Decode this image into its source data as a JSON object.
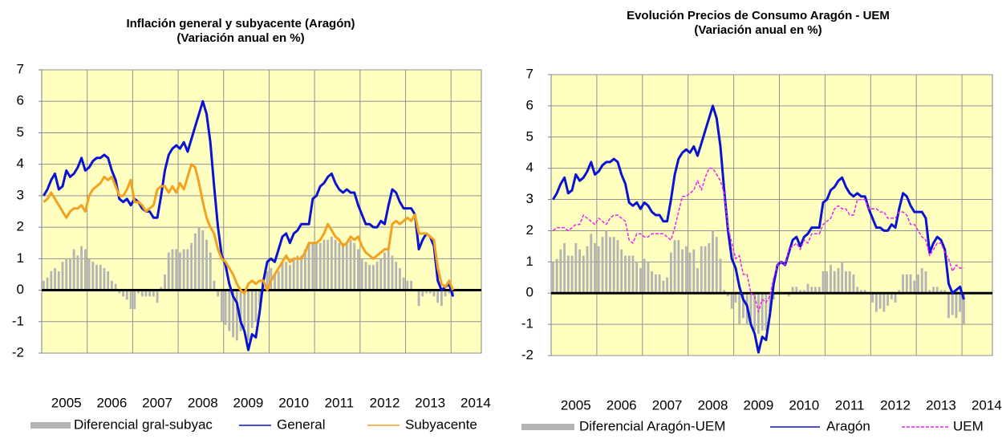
{
  "chart_data": [
    {
      "type": "line",
      "title": "Inflación general y subyacente (Aragón)",
      "subtitle": "(Variación anual en %)",
      "categories": [
        null,
        null,
        null,
        null,
        null,
        null,
        "2005",
        null,
        null,
        null,
        null,
        null,
        null,
        null,
        null,
        null,
        null,
        null,
        "2006",
        null,
        null,
        null,
        null,
        null,
        null,
        null,
        null,
        null,
        null,
        null,
        "2007",
        null,
        null,
        null,
        null,
        null,
        null,
        null,
        null,
        null,
        null,
        null,
        "2008",
        null,
        null,
        null,
        null,
        null,
        null,
        null,
        null,
        null,
        null,
        null,
        "2009",
        null,
        null,
        null,
        null,
        null,
        null,
        null,
        null,
        null,
        null,
        null,
        "2010",
        null,
        null,
        null,
        null,
        null,
        null,
        null,
        null,
        null,
        null,
        null,
        "2011",
        null,
        null,
        null,
        null,
        null,
        null,
        null,
        null,
        null,
        null,
        null,
        "2012",
        null,
        null,
        null,
        null,
        null,
        null,
        null,
        null,
        null,
        null,
        null,
        "2013",
        null,
        null,
        null,
        null,
        null,
        null,
        null,
        null,
        null,
        null,
        null,
        "2014",
        null
      ],
      "ylim": [
        -2,
        7
      ],
      "yticks": [
        -2,
        -1,
        0,
        1,
        2,
        3,
        4,
        5,
        6,
        7
      ],
      "grid": true,
      "series": [
        {
          "name": "Diferencial gral-subyac",
          "type": "bar",
          "color": "#b4b4b4",
          "values": [
            0.3,
            0.4,
            0.6,
            0.7,
            0.6,
            0.9,
            1.0,
            1.0,
            1.3,
            1.1,
            1.4,
            1.3,
            1.0,
            0.9,
            0.8,
            0.8,
            0.7,
            0.6,
            0.3,
            0.2,
            -0.1,
            -0.2,
            -0.3,
            -0.6,
            -0.6,
            -0.1,
            -0.2,
            -0.2,
            -0.2,
            -0.2,
            -0.4,
            0.1,
            0.5,
            1.2,
            1.3,
            1.3,
            1.2,
            1.3,
            1.3,
            1.5,
            1.8,
            2.0,
            1.9,
            1.6,
            1.2,
            0.3,
            -0.2,
            -1.0,
            -1.1,
            -1.3,
            -1.5,
            -1.6,
            -1.3,
            -1.2,
            -1.6,
            -1.2,
            -1.0,
            -0.5,
            0.1,
            0.6,
            0.7,
            0.5,
            0.6,
            0.9,
            0.9,
            0.8,
            1.0,
            1.1,
            1.1,
            1.3,
            1.5,
            1.5,
            1.5,
            1.5,
            1.6,
            1.6,
            1.7,
            1.6,
            1.5,
            1.5,
            1.5,
            1.6,
            1.5,
            1.3,
            1.0,
            0.9,
            0.8,
            0.8,
            0.9,
            1.0,
            1.2,
            1.4,
            1.1,
            0.9,
            0.7,
            0.4,
            0.3,
            0.3,
            0.0,
            -0.5,
            -0.2,
            -0.1,
            -0.1,
            -0.2,
            -0.4,
            -0.5,
            -0.2,
            -0.1,
            -0.2,
            null,
            null,
            null,
            null,
            null,
            null,
            null
          ]
        },
        {
          "name": "General",
          "type": "line",
          "color": "#0a14d0",
          "values": [
            3.0,
            3.2,
            3.5,
            3.7,
            3.2,
            3.3,
            3.8,
            3.6,
            3.7,
            3.9,
            4.2,
            3.8,
            3.9,
            4.1,
            4.2,
            4.2,
            4.3,
            4.2,
            3.8,
            3.5,
            2.9,
            2.8,
            2.9,
            2.7,
            2.9,
            2.8,
            2.6,
            2.5,
            2.5,
            2.3,
            2.3,
            3.0,
            3.8,
            4.3,
            4.5,
            4.6,
            4.5,
            4.7,
            4.4,
            4.8,
            5.2,
            5.6,
            6.0,
            5.6,
            4.7,
            3.3,
            2.0,
            1.1,
            0.8,
            0.2,
            -0.2,
            -0.4,
            -1.0,
            -1.3,
            -1.9,
            -1.4,
            -1.5,
            -0.7,
            0.3,
            0.9,
            1.0,
            0.9,
            1.3,
            1.7,
            1.8,
            1.5,
            1.8,
            1.9,
            2.1,
            2.1,
            2.1,
            2.9,
            3.0,
            3.3,
            3.4,
            3.6,
            3.7,
            3.4,
            3.2,
            3.1,
            3.2,
            3.1,
            3.1,
            2.7,
            2.4,
            2.1,
            2.1,
            2.0,
            2.0,
            2.2,
            2.1,
            2.7,
            3.2,
            3.1,
            2.8,
            2.6,
            2.6,
            2.6,
            2.4,
            1.3,
            1.6,
            1.8,
            1.7,
            1.4,
            0.3,
            0.0,
            0.1,
            0.2,
            -0.2,
            null,
            null,
            null,
            null,
            null,
            null,
            null
          ]
        },
        {
          "name": "Subyacente",
          "type": "line",
          "color": "#f4a020",
          "values": [
            2.8,
            2.9,
            3.1,
            2.9,
            2.7,
            2.5,
            2.3,
            2.5,
            2.6,
            2.6,
            2.7,
            2.5,
            3.0,
            3.2,
            3.3,
            3.4,
            3.6,
            3.5,
            3.6,
            3.3,
            3.0,
            3.0,
            3.2,
            3.5,
            2.8,
            2.8,
            2.7,
            2.5,
            2.6,
            2.7,
            3.2,
            3.3,
            3.3,
            3.1,
            3.3,
            3.1,
            3.4,
            3.2,
            3.6,
            4.0,
            3.9,
            3.4,
            2.8,
            2.3,
            2.0,
            1.8,
            1.3,
            1.0,
            0.9,
            0.7,
            0.5,
            0.2,
            0.0,
            -0.1,
            0.2,
            0.3,
            0.2,
            0.3,
            0.3,
            0.0,
            0.3,
            0.5,
            0.7,
            0.9,
            1.1,
            0.9,
            1.0,
            1.0,
            1.0,
            1.2,
            1.5,
            1.5,
            1.5,
            1.6,
            1.8,
            2.1,
            1.9,
            1.7,
            1.6,
            1.4,
            1.5,
            1.7,
            1.6,
            1.7,
            1.4,
            1.2,
            1.1,
            1.0,
            1.1,
            1.2,
            1.3,
            1.3,
            2.1,
            2.2,
            2.1,
            2.2,
            2.3,
            2.2,
            2.4,
            1.8,
            1.8,
            1.8,
            1.7,
            1.6,
            0.7,
            0.2,
            0.1,
            0.3,
            0.0,
            null,
            null,
            null,
            null,
            null,
            null,
            null
          ]
        }
      ]
    },
    {
      "type": "line",
      "title": "Evolución Precios de Consumo Aragón - UEM",
      "subtitle": "(Variación anual en %)",
      "categories": [
        null,
        null,
        null,
        null,
        null,
        null,
        "2005",
        null,
        null,
        null,
        null,
        null,
        null,
        null,
        null,
        null,
        null,
        null,
        "2006",
        null,
        null,
        null,
        null,
        null,
        null,
        null,
        null,
        null,
        null,
        null,
        "2007",
        null,
        null,
        null,
        null,
        null,
        null,
        null,
        null,
        null,
        null,
        null,
        "2008",
        null,
        null,
        null,
        null,
        null,
        null,
        null,
        null,
        null,
        null,
        null,
        "2009",
        null,
        null,
        null,
        null,
        null,
        null,
        null,
        null,
        null,
        null,
        null,
        "2010",
        null,
        null,
        null,
        null,
        null,
        null,
        null,
        null,
        null,
        null,
        null,
        "2011",
        null,
        null,
        null,
        null,
        null,
        null,
        null,
        null,
        null,
        null,
        null,
        "2012",
        null,
        null,
        null,
        null,
        null,
        null,
        null,
        null,
        null,
        null,
        null,
        "2013",
        null,
        null,
        null,
        null,
        null,
        null,
        null,
        null,
        null,
        null,
        null,
        "2014",
        null
      ],
      "ylim": [
        -2,
        7
      ],
      "yticks": [
        -2,
        -1,
        0,
        1,
        2,
        3,
        4,
        5,
        6,
        7
      ],
      "grid": true,
      "series": [
        {
          "name": "Diferencial Aragón-UEM",
          "type": "bar",
          "color": "#b4b4b4",
          "values": [
            1.0,
            1.1,
            1.4,
            1.6,
            1.2,
            1.2,
            1.6,
            1.4,
            1.2,
            1.5,
            1.9,
            1.6,
            1.5,
            1.8,
            2.0,
            1.8,
            1.8,
            1.7,
            1.4,
            1.2,
            1.2,
            1.2,
            1.0,
            0.8,
            1.1,
            1.0,
            0.7,
            0.6,
            0.6,
            0.4,
            0.5,
            1.3,
            1.7,
            1.7,
            1.4,
            1.5,
            1.3,
            1.4,
            0.8,
            1.5,
            1.5,
            1.6,
            2.0,
            1.8,
            1.1,
            0.1,
            -0.1,
            -0.5,
            -0.3,
            -1.0,
            -0.8,
            -1.0,
            -1.0,
            -1.2,
            -1.3,
            -1.2,
            -1.2,
            -0.6,
            -0.2,
            0.0,
            0.0,
            0.0,
            -0.1,
            0.2,
            0.2,
            0.1,
            0.1,
            0.3,
            0.2,
            0.2,
            0.2,
            0.7,
            0.7,
            0.9,
            0.7,
            0.8,
            1.0,
            0.7,
            0.7,
            0.6,
            0.2,
            0.1,
            0.1,
            0.0,
            -0.3,
            -0.6,
            -0.5,
            -0.6,
            -0.4,
            -0.2,
            -0.3,
            0.1,
            0.6,
            0.6,
            0.6,
            0.4,
            0.6,
            0.8,
            0.7,
            0.1,
            0.2,
            0.2,
            0.1,
            0.1,
            -0.8,
            -0.7,
            -0.8,
            -0.6,
            -1.0,
            null,
            null,
            null,
            null,
            null,
            null,
            null
          ]
        },
        {
          "name": "Aragón",
          "type": "line",
          "color": "#0a14d0",
          "values": [
            3.0,
            3.2,
            3.5,
            3.7,
            3.2,
            3.3,
            3.8,
            3.6,
            3.7,
            3.9,
            4.2,
            3.8,
            3.9,
            4.1,
            4.2,
            4.2,
            4.3,
            4.2,
            3.8,
            3.5,
            2.9,
            2.8,
            2.9,
            2.7,
            2.9,
            2.8,
            2.6,
            2.5,
            2.5,
            2.3,
            2.3,
            3.0,
            3.8,
            4.3,
            4.5,
            4.6,
            4.5,
            4.7,
            4.4,
            4.8,
            5.2,
            5.6,
            6.0,
            5.6,
            4.7,
            3.3,
            2.0,
            1.1,
            0.8,
            0.2,
            -0.2,
            -0.4,
            -1.0,
            -1.3,
            -1.9,
            -1.4,
            -1.5,
            -0.7,
            0.3,
            0.9,
            1.0,
            0.9,
            1.3,
            1.7,
            1.8,
            1.5,
            1.8,
            1.9,
            2.1,
            2.1,
            2.1,
            2.9,
            3.0,
            3.3,
            3.4,
            3.6,
            3.7,
            3.4,
            3.2,
            3.1,
            3.2,
            3.1,
            3.1,
            2.7,
            2.4,
            2.1,
            2.1,
            2.0,
            2.0,
            2.2,
            2.1,
            2.7,
            3.2,
            3.1,
            2.8,
            2.6,
            2.6,
            2.6,
            2.4,
            1.3,
            1.6,
            1.8,
            1.7,
            1.4,
            0.3,
            0.0,
            0.1,
            0.2,
            -0.2,
            null,
            null,
            null,
            null,
            null,
            null,
            null
          ]
        },
        {
          "name": "UEM",
          "type": "line",
          "dashed": true,
          "color": "#f020f0",
          "values": [
            2.0,
            2.1,
            2.1,
            2.1,
            2.0,
            2.1,
            2.2,
            2.2,
            2.5,
            2.4,
            2.3,
            2.2,
            2.4,
            2.3,
            2.2,
            2.4,
            2.5,
            2.5,
            2.4,
            2.3,
            1.7,
            1.6,
            1.9,
            1.9,
            1.8,
            1.8,
            1.9,
            1.9,
            1.9,
            1.9,
            1.8,
            1.7,
            2.1,
            2.6,
            3.1,
            3.1,
            3.2,
            3.3,
            3.6,
            3.3,
            3.7,
            4.0,
            4.0,
            3.8,
            3.6,
            3.2,
            2.1,
            1.6,
            1.1,
            1.2,
            0.6,
            0.6,
            0.0,
            -0.1,
            -0.6,
            -0.2,
            -0.3,
            -0.1,
            0.5,
            0.9,
            1.0,
            0.9,
            1.4,
            1.5,
            1.6,
            1.4,
            1.7,
            1.6,
            1.9,
            1.9,
            1.9,
            2.2,
            2.3,
            2.4,
            2.7,
            2.8,
            2.7,
            2.7,
            2.5,
            2.5,
            3.0,
            3.0,
            3.0,
            2.7,
            2.7,
            2.7,
            2.6,
            2.6,
            2.4,
            2.4,
            2.4,
            2.6,
            2.6,
            2.5,
            2.2,
            2.2,
            2.0,
            1.8,
            1.7,
            1.2,
            1.4,
            1.6,
            1.6,
            1.3,
            1.1,
            0.7,
            0.9,
            0.8,
            0.8,
            null,
            null,
            null,
            null,
            null,
            null,
            null
          ]
        }
      ]
    }
  ]
}
